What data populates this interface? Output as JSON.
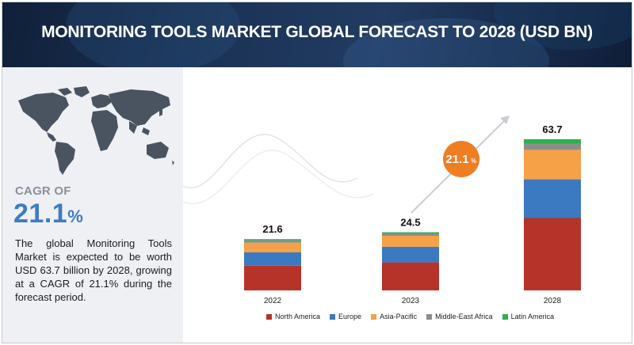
{
  "banner": {
    "title": "MONITORING TOOLS MARKET GLOBAL FORECAST TO 2028 (USD BN)"
  },
  "left_panel": {
    "cagr_label": "CAGR OF",
    "cagr_number": "21.1",
    "cagr_unit": "%",
    "description": "The global Monitoring Tools Market is expected to be worth USD 63.7 billion by 2028, growing at a CAGR of 21.1% during the forecast period.",
    "map_icon": "world-map-icon"
  },
  "badge": {
    "value": "21.1",
    "unit": "%"
  },
  "colors": {
    "North America": "#b6332a",
    "Europe": "#3b79c0",
    "Asia-Pacific": "#f6a047",
    "Middle-East Africa": "#8d8d8d",
    "Latin America": "#2bb24c",
    "badge": "#ef7d22",
    "cagr_blue": "#3d7cc4"
  },
  "chart_data": {
    "type": "bar",
    "stacked": true,
    "categories": [
      "2022",
      "2023",
      "2028"
    ],
    "totals": [
      "21.6",
      "24.5",
      "63.7"
    ],
    "series": [
      {
        "name": "North America",
        "values": [
          10.4,
          11.8,
          30.5
        ]
      },
      {
        "name": "Europe",
        "values": [
          5.7,
          6.6,
          16.3
        ]
      },
      {
        "name": "Asia-Pacific",
        "values": [
          4.0,
          4.6,
          12.4
        ]
      },
      {
        "name": "Middle-East Africa",
        "values": [
          1.0,
          1.0,
          2.5
        ]
      },
      {
        "name": "Latin America",
        "values": [
          0.5,
          0.5,
          2.0
        ]
      }
    ],
    "legend_position": "bottom",
    "grid": false
  }
}
